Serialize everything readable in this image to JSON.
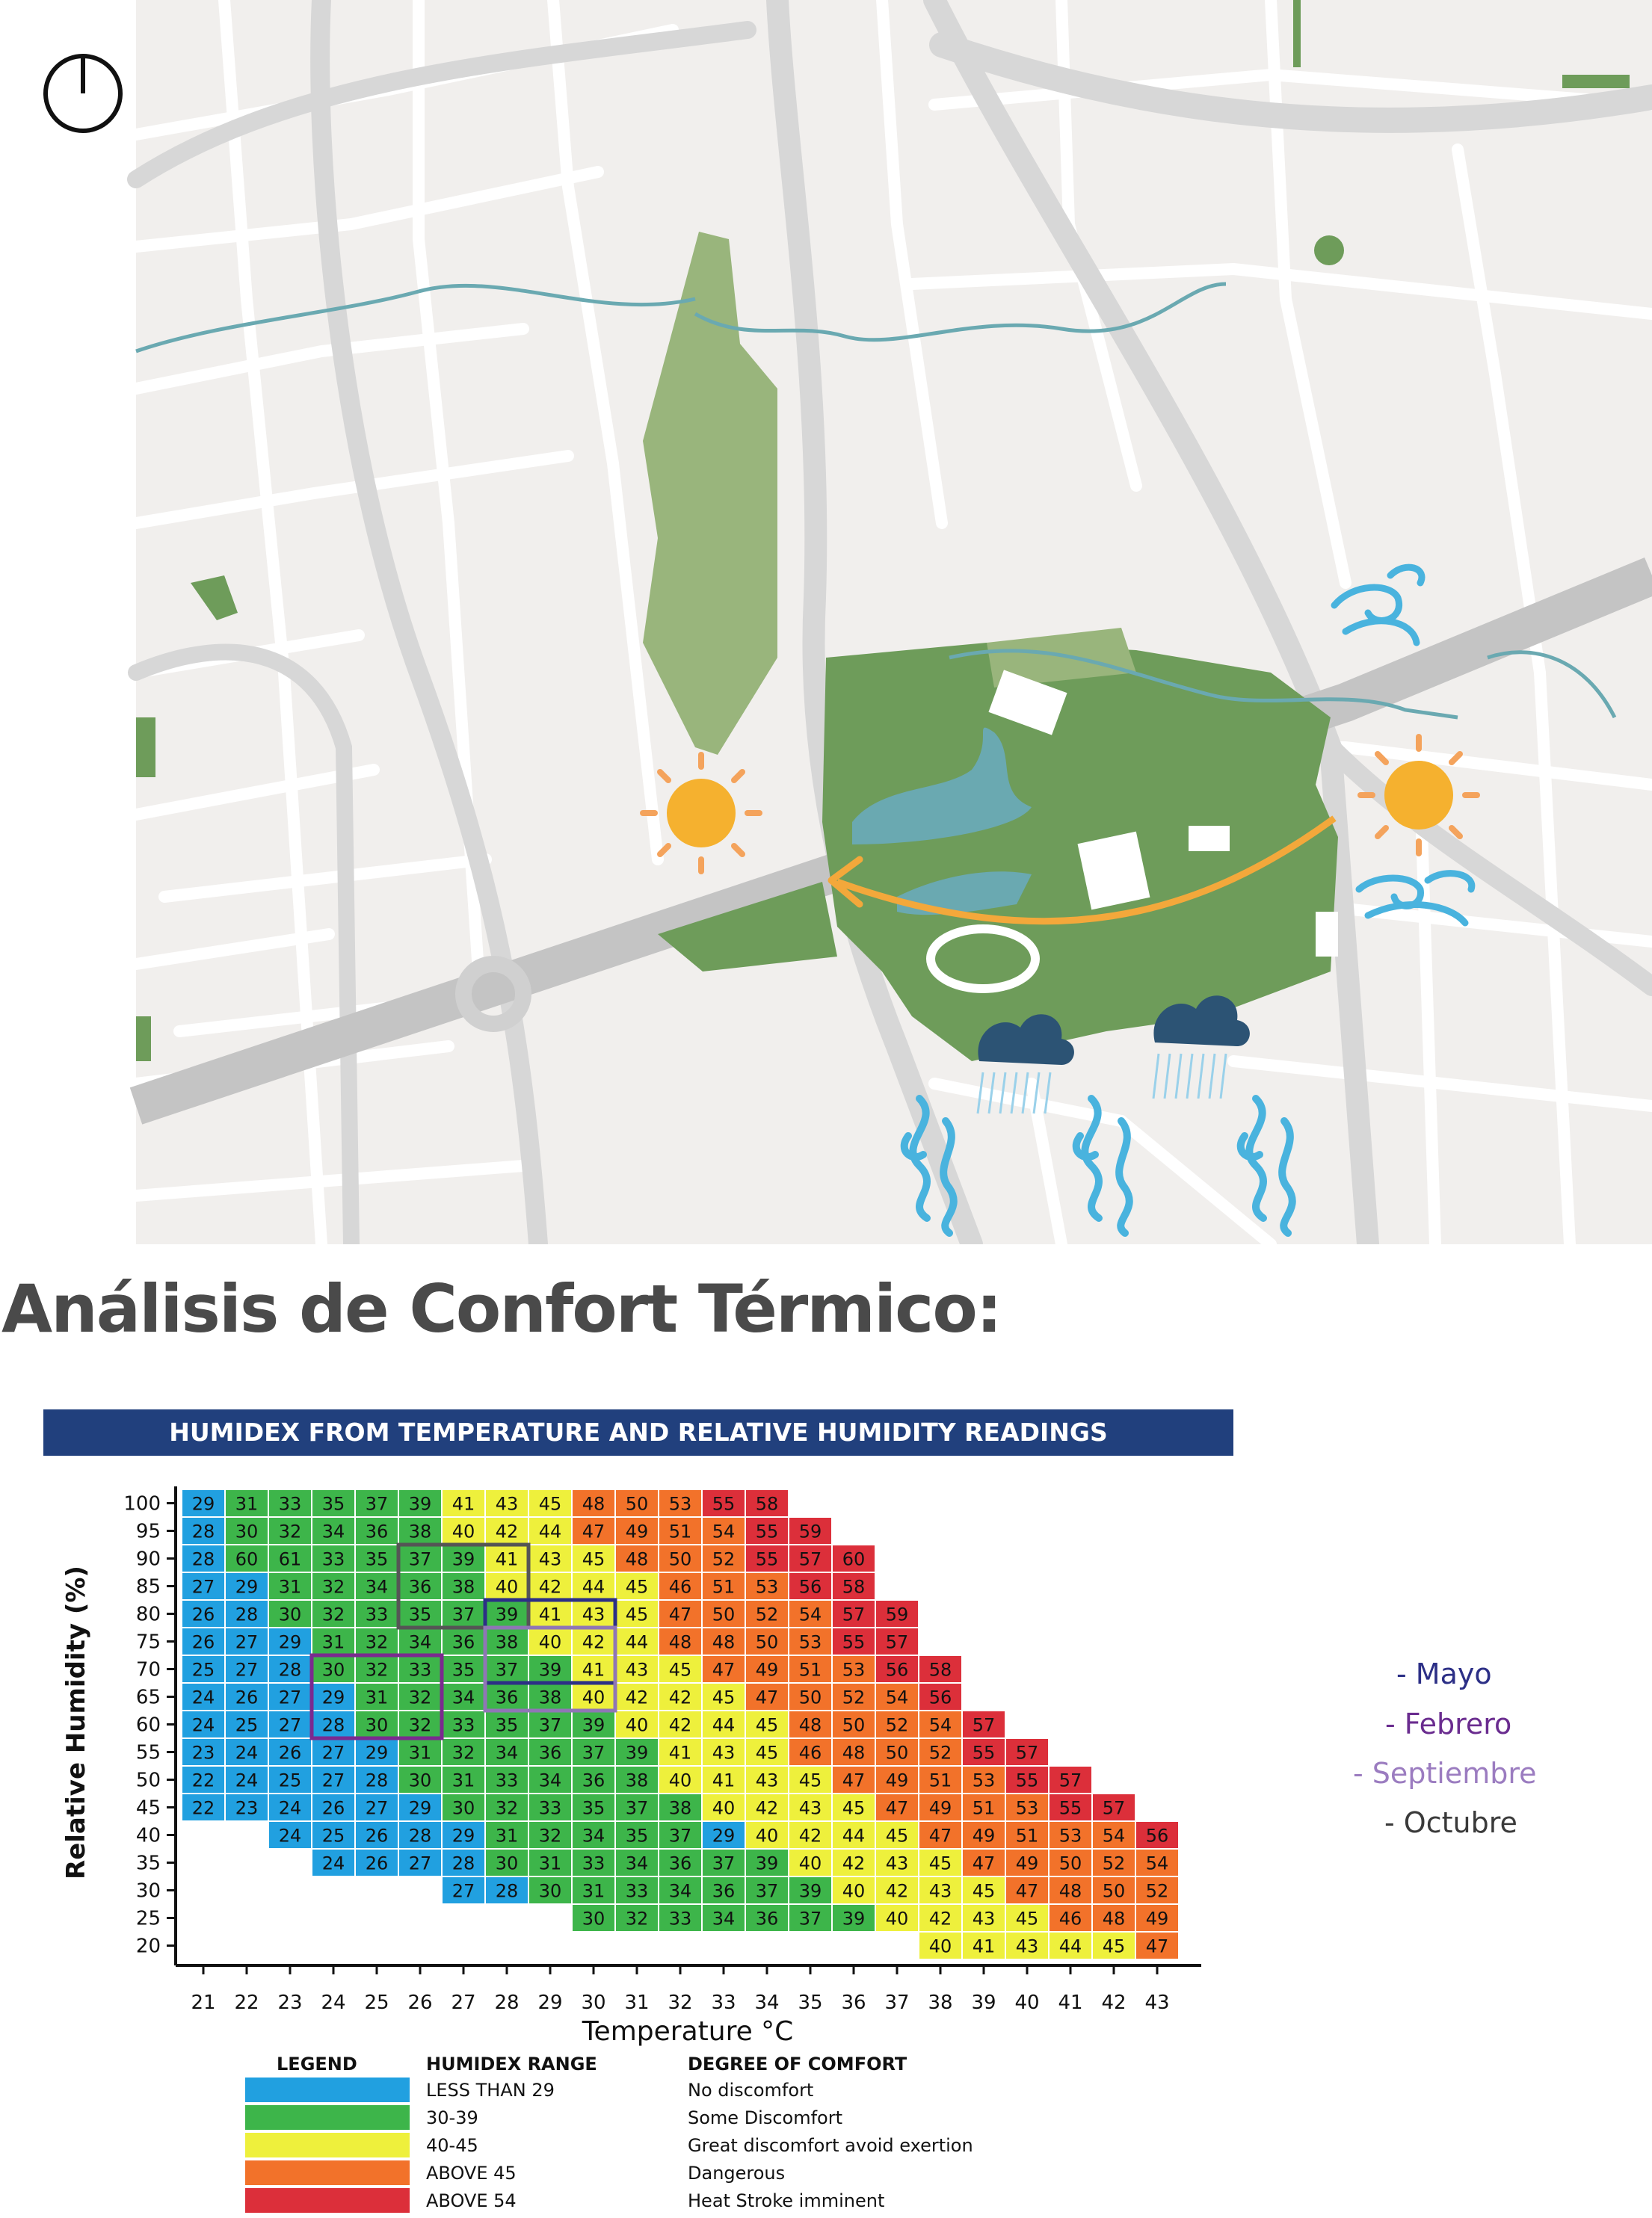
{
  "page": {
    "title": "Análisis de Confort Térmico:"
  },
  "map": {
    "icons": [
      "clock-icon",
      "sun-icon",
      "sun-icon",
      "wind-icon",
      "wind-icon",
      "rain-cloud-icon",
      "rain-cloud-icon",
      "humidity-icon",
      "humidity-icon",
      "humidity-icon",
      "sun-path-arrow"
    ],
    "colors": {
      "roads": "#d9d9d9",
      "blocks": "#f1efed",
      "park": "#6e9c5a",
      "park_light": "#99b57c",
      "water": "#6aa9b1",
      "sun": "#f5b12f",
      "arrow": "#f3a83b",
      "wind": "#49b3de",
      "cloud": "#2c5374"
    }
  },
  "chart_data": {
    "type": "heatmap",
    "title": "HUMIDEX FROM TEMPERATURE AND RELATIVE HUMIDITY READINGS",
    "xlabel": "Temperature °C",
    "ylabel": "Relative Humidity (%)",
    "x": [
      21,
      22,
      23,
      24,
      25,
      26,
      27,
      28,
      29,
      30,
      31,
      32,
      33,
      34,
      35,
      36,
      37,
      38,
      39,
      40,
      41,
      42,
      43
    ],
    "y": [
      100,
      95,
      90,
      85,
      80,
      75,
      70,
      65,
      60,
      55,
      50,
      45,
      40,
      35,
      30,
      25,
      20
    ],
    "values": [
      [
        29,
        31,
        33,
        35,
        37,
        39,
        41,
        43,
        45,
        48,
        50,
        53,
        55,
        58,
        null,
        null,
        null,
        null,
        null,
        null,
        null,
        null,
        null
      ],
      [
        28,
        30,
        32,
        34,
        36,
        38,
        40,
        42,
        44,
        47,
        49,
        51,
        54,
        55,
        59,
        null,
        null,
        null,
        null,
        null,
        null,
        null,
        null
      ],
      [
        28,
        60,
        61,
        33,
        35,
        37,
        39,
        41,
        43,
        45,
        48,
        50,
        52,
        55,
        57,
        60,
        null,
        null,
        null,
        null,
        null,
        null,
        null
      ],
      [
        27,
        29,
        31,
        32,
        34,
        36,
        38,
        40,
        42,
        44,
        45,
        46,
        51,
        53,
        56,
        58,
        null,
        null,
        null,
        null,
        null,
        null,
        null
      ],
      [
        26,
        28,
        30,
        32,
        33,
        35,
        37,
        39,
        41,
        43,
        45,
        47,
        50,
        52,
        54,
        57,
        59,
        null,
        null,
        null,
        null,
        null,
        null
      ],
      [
        26,
        27,
        29,
        31,
        32,
        34,
        36,
        38,
        40,
        42,
        44,
        48,
        48,
        50,
        53,
        55,
        57,
        null,
        null,
        null,
        null,
        null,
        null
      ],
      [
        25,
        27,
        28,
        30,
        32,
        33,
        35,
        37,
        39,
        41,
        43,
        45,
        47,
        49,
        51,
        53,
        56,
        58,
        null,
        null,
        null,
        null,
        null
      ],
      [
        24,
        26,
        27,
        29,
        31,
        32,
        34,
        36,
        38,
        40,
        42,
        42,
        45,
        47,
        50,
        52,
        54,
        56,
        null,
        null,
        null,
        null,
        null
      ],
      [
        24,
        25,
        27,
        28,
        30,
        32,
        33,
        35,
        37,
        39,
        40,
        42,
        44,
        45,
        48,
        50,
        52,
        54,
        57,
        null,
        null,
        null,
        null
      ],
      [
        23,
        24,
        26,
        27,
        29,
        31,
        32,
        34,
        36,
        37,
        39,
        41,
        43,
        45,
        46,
        48,
        50,
        52,
        55,
        57,
        null,
        null,
        null
      ],
      [
        22,
        24,
        25,
        27,
        28,
        30,
        31,
        33,
        34,
        36,
        38,
        40,
        41,
        43,
        45,
        47,
        49,
        51,
        53,
        55,
        57,
        null,
        null
      ],
      [
        22,
        23,
        24,
        26,
        27,
        29,
        30,
        32,
        33,
        35,
        37,
        38,
        40,
        42,
        43,
        45,
        47,
        49,
        51,
        53,
        55,
        57,
        null
      ],
      [
        null,
        null,
        24,
        25,
        26,
        28,
        29,
        31,
        32,
        34,
        35,
        37,
        29,
        40,
        42,
        44,
        45,
        47,
        49,
        51,
        53,
        54,
        56
      ],
      [
        null,
        null,
        null,
        24,
        26,
        27,
        28,
        30,
        31,
        33,
        34,
        36,
        37,
        39,
        40,
        42,
        43,
        45,
        47,
        49,
        50,
        52,
        54
      ],
      [
        null,
        null,
        null,
        null,
        null,
        null,
        27,
        28,
        30,
        31,
        33,
        34,
        36,
        37,
        39,
        40,
        42,
        43,
        45,
        47,
        48,
        50,
        52
      ],
      [
        null,
        null,
        null,
        null,
        null,
        null,
        null,
        null,
        null,
        30,
        32,
        33,
        34,
        36,
        37,
        39,
        40,
        42,
        43,
        45,
        46,
        48,
        49
      ],
      [
        null,
        null,
        null,
        null,
        null,
        null,
        null,
        null,
        null,
        null,
        null,
        null,
        null,
        null,
        null,
        null,
        null,
        40,
        41,
        43,
        44,
        45,
        47
      ]
    ],
    "cell_colors": {
      "blue": "#21a0e0",
      "green": "#3db54a",
      "yellow": "#eef03c",
      "orange": "#f2722a",
      "red": "#dc2f3a"
    },
    "cell_color_exceptions": [
      {
        "x": 22,
        "y": 90,
        "color": "green"
      },
      {
        "x": 23,
        "y": 90,
        "color": "green"
      },
      {
        "x": 43,
        "y": 40,
        "color": "red"
      }
    ],
    "highlight_boxes": [
      {
        "label": "Octubre",
        "x": [
          26,
          28
        ],
        "y": [
          90,
          80
        ],
        "color": "#555555"
      },
      {
        "label": "Mayo",
        "x": [
          28,
          30
        ],
        "y": [
          80,
          70
        ],
        "color": "#2c2f86"
      },
      {
        "label": "Septiembre",
        "x": [
          28,
          30
        ],
        "y": [
          75,
          65
        ],
        "color": "#8f76b5"
      },
      {
        "label": "Febrero",
        "x": [
          24,
          26
        ],
        "y": [
          70,
          60
        ],
        "color": "#7b2a8f"
      }
    ],
    "legend": {
      "headers": [
        "LEGEND",
        "HUMIDEX RANGE",
        "DEGREE OF COMFORT"
      ],
      "items": [
        {
          "color": "#21a0e0",
          "range": "LESS THAN 29",
          "comfort": "No discomfort"
        },
        {
          "color": "#3db54a",
          "range": "30-39",
          "comfort": "Some Discomfort"
        },
        {
          "color": "#eef03c",
          "range": "40-45",
          "comfort": "Great discomfort avoid exertion"
        },
        {
          "color": "#f2722a",
          "range": "ABOVE 45",
          "comfort": "Dangerous"
        },
        {
          "color": "#dc2f3a",
          "range": "ABOVE 54",
          "comfort": "Heat Stroke imminent"
        }
      ]
    },
    "header_color": "#21407d"
  },
  "months": [
    {
      "label": "- Mayo",
      "color": "#2c2f86"
    },
    {
      "label": "- Febrero",
      "color": "#6a2c8f"
    },
    {
      "label": "- Septiembre",
      "color": "#9b7cc0"
    },
    {
      "label": "- Octubre",
      "color": "#3a3a3a"
    }
  ]
}
